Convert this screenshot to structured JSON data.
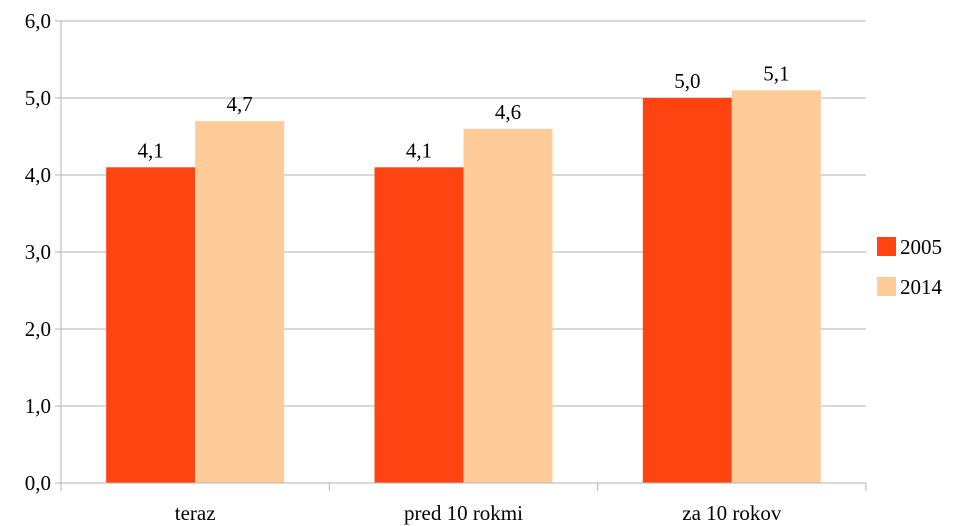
{
  "chart_data": {
    "type": "bar",
    "categories": [
      "teraz",
      "pred 10 rokmi",
      "za 10 rokov"
    ],
    "series": [
      {
        "name": "2005",
        "values": [
          4.1,
          4.1,
          5.0
        ],
        "labels": [
          "4,1",
          "4,1",
          "5,0"
        ],
        "color": "#ff4411"
      },
      {
        "name": "2014",
        "values": [
          4.7,
          4.6,
          5.1
        ],
        "labels": [
          "4,7",
          "4,6",
          "5,1"
        ],
        "color": "#ffcc99"
      }
    ],
    "ylim": [
      0,
      6
    ],
    "yticks": [
      0,
      1,
      2,
      3,
      4,
      5,
      6
    ],
    "ytick_labels": [
      "0,0",
      "1,0",
      "2,0",
      "3,0",
      "4,0",
      "5,0",
      "6,0"
    ],
    "grid": true,
    "legend_position": "right",
    "title": "",
    "xlabel": "",
    "ylabel": "",
    "colors": {
      "grid": "#b3b3b3",
      "axis": "#b3b3b3",
      "text": "#000000"
    }
  }
}
